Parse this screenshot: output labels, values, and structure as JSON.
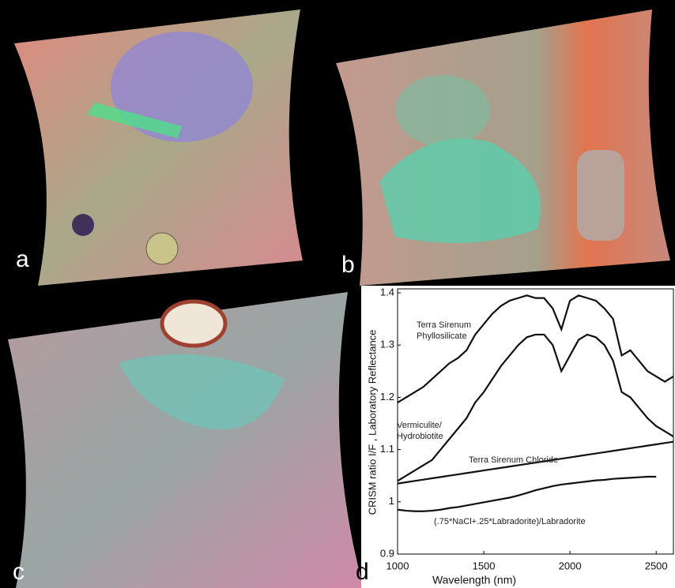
{
  "panels": [
    {
      "label": "a"
    },
    {
      "label": "b"
    },
    {
      "label": "c"
    }
  ],
  "chart_data": {
    "type": "line",
    "label": "d",
    "xlabel": "Wavelength (nm)",
    "ylabel": "CRISM ratio I/F , Laboratory Reflectance",
    "x": [
      1000,
      1050,
      1100,
      1150,
      1200,
      1250,
      1300,
      1350,
      1400,
      1450,
      1500,
      1550,
      1600,
      1650,
      1700,
      1750,
      1800,
      1850,
      1900,
      1950,
      2000,
      2050,
      2100,
      2150,
      2200,
      2250,
      2300,
      2350,
      2400,
      2450,
      2500,
      2550,
      2600
    ],
    "xlim": [
      1000,
      2600
    ],
    "ylim": [
      0.9,
      1.4
    ],
    "xticks": [
      1000,
      1500,
      2000,
      2500
    ],
    "yticks": [
      0.9,
      1,
      1.1,
      1.2,
      1.3,
      1.4
    ],
    "series": [
      {
        "name": "Terra Sirenum\nPhyllosilicate",
        "color": "#111111",
        "values": [
          1.19,
          1.2,
          1.21,
          1.22,
          1.235,
          1.25,
          1.265,
          1.275,
          1.29,
          1.32,
          1.34,
          1.36,
          1.375,
          1.385,
          1.39,
          1.395,
          1.39,
          1.39,
          1.37,
          1.33,
          1.385,
          1.395,
          1.39,
          1.385,
          1.37,
          1.35,
          1.28,
          1.29,
          1.27,
          1.25,
          1.24,
          1.23,
          1.24
        ]
      },
      {
        "name": "Vermiculite/\nHydrobiotite",
        "color": "#111111",
        "values": [
          1.04,
          1.05,
          1.06,
          1.07,
          1.08,
          1.1,
          1.12,
          1.14,
          1.16,
          1.19,
          1.21,
          1.235,
          1.26,
          1.28,
          1.3,
          1.315,
          1.32,
          1.32,
          1.3,
          1.25,
          1.28,
          1.31,
          1.32,
          1.315,
          1.3,
          1.27,
          1.21,
          1.2,
          1.18,
          1.16,
          1.145,
          1.135,
          1.125
        ]
      },
      {
        "name": "Terra Sirenum Chloride",
        "color": "#111111",
        "values": [
          1.035,
          1.0375,
          1.04,
          1.0425,
          1.045,
          1.0475,
          1.05,
          1.0525,
          1.055,
          1.0575,
          1.06,
          1.0625,
          1.065,
          1.0675,
          1.07,
          1.0725,
          1.075,
          1.0775,
          1.08,
          1.0825,
          1.085,
          1.0875,
          1.09,
          1.0925,
          1.095,
          1.0975,
          1.1,
          1.1025,
          1.105,
          1.1075,
          1.11,
          1.1125,
          1.115
        ]
      },
      {
        "name": "(.75*NaCl+.25*Labradorite)/Labradorite",
        "color": "#111111",
        "values": [
          0.985,
          0.983,
          0.982,
          0.982,
          0.983,
          0.985,
          0.988,
          0.99,
          0.993,
          0.996,
          0.999,
          1.002,
          1.005,
          1.008,
          1.012,
          1.017,
          1.022,
          1.026,
          1.03,
          1.033,
          1.035,
          1.037,
          1.039,
          1.041,
          1.042,
          1.044,
          1.045,
          1.046,
          1.047,
          1.048,
          1.048,
          null,
          null
        ]
      }
    ]
  }
}
